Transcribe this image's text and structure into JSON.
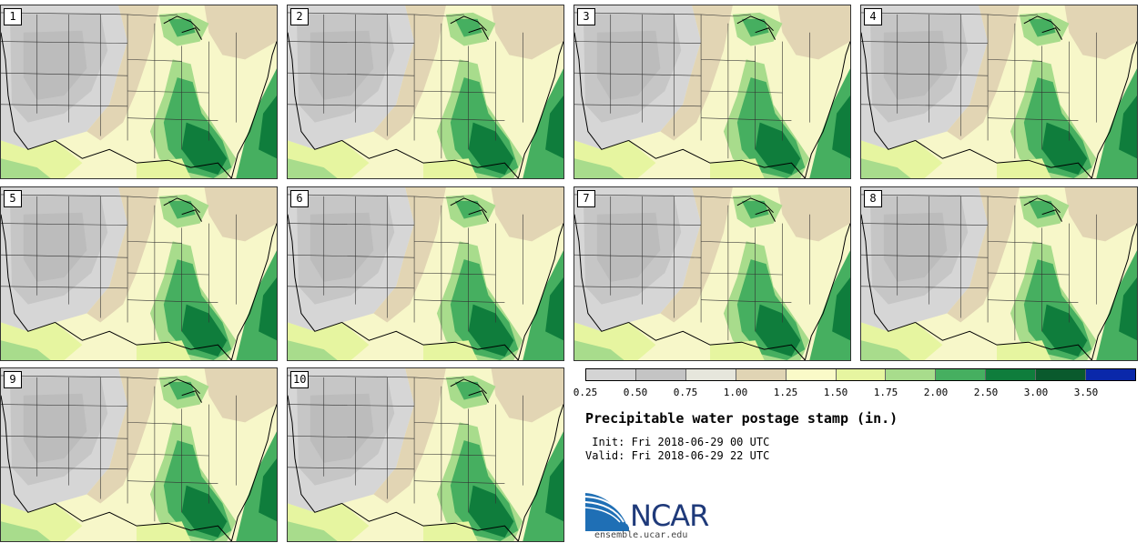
{
  "panels": [
    {
      "label": "1"
    },
    {
      "label": "2"
    },
    {
      "label": "3"
    },
    {
      "label": "4"
    },
    {
      "label": "5"
    },
    {
      "label": "6"
    },
    {
      "label": "7"
    },
    {
      "label": "8"
    },
    {
      "label": "9"
    },
    {
      "label": "10"
    }
  ],
  "colorbar": {
    "colors": [
      "#d4d4d4",
      "#c4c4c4",
      "#e6e6dc",
      "#e0d4b4",
      "#fafac8",
      "#e6f5a0",
      "#a8dc8c",
      "#46af60",
      "#0f7d3c",
      "#0a5a2d",
      "#0a28aa"
    ],
    "tick_labels": [
      "0.25",
      "0.50",
      "0.75",
      "1.00",
      "1.25",
      "1.50",
      "1.75",
      "2.00",
      "2.50",
      "3.00",
      "3.50"
    ]
  },
  "title": "Precipitable water postage stamp (in.)",
  "init": " Init: Fri 2018-06-29 00 UTC",
  "valid": "Valid: Fri 2018-06-29 22 UTC",
  "logo": {
    "text": "NCAR",
    "url": "ensemble.ucar.edu"
  }
}
